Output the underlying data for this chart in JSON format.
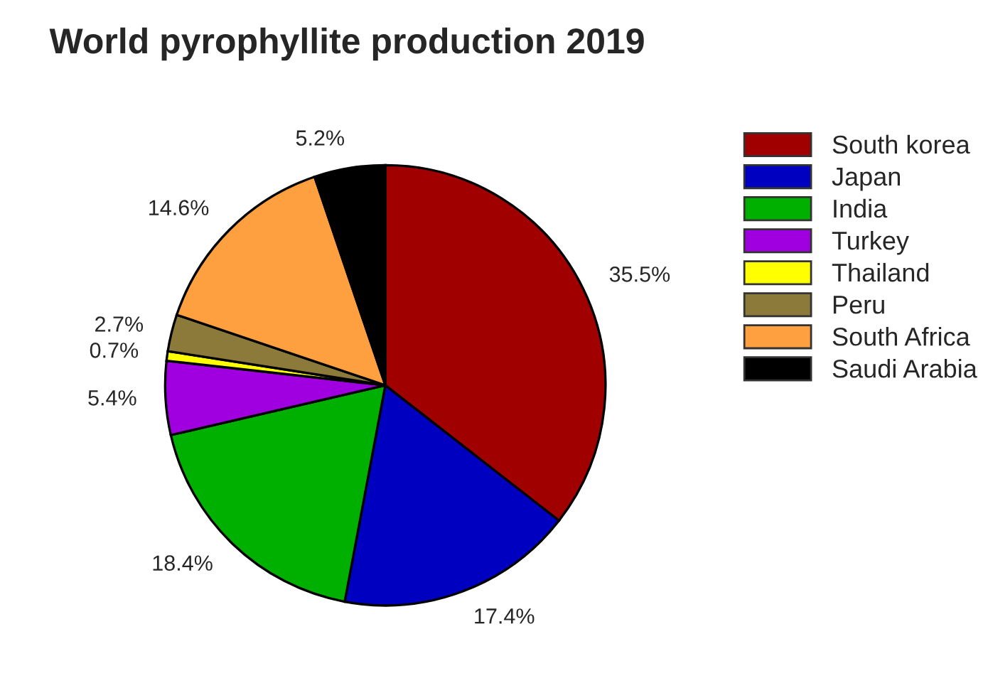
{
  "chart_data": {
    "type": "pie",
    "title": "World pyrophyllite production 2019",
    "categories": [
      "South korea",
      "Japan",
      "India",
      "Turkey",
      "Thailand",
      "Peru",
      "South Africa",
      "Saudi Arabia"
    ],
    "values": [
      35.5,
      17.4,
      18.4,
      5.4,
      0.7,
      2.7,
      14.6,
      5.2
    ],
    "value_labels": [
      "35.5%",
      "17.4%",
      "18.4%",
      "5.4%",
      "0.7%",
      "2.7%",
      "14.6%",
      "5.2%"
    ],
    "colors": [
      "#a00000",
      "#0000c0",
      "#00b000",
      "#a000e0",
      "#ffff00",
      "#8c7a3a",
      "#ffa040",
      "#000000"
    ],
    "legend": "right"
  }
}
